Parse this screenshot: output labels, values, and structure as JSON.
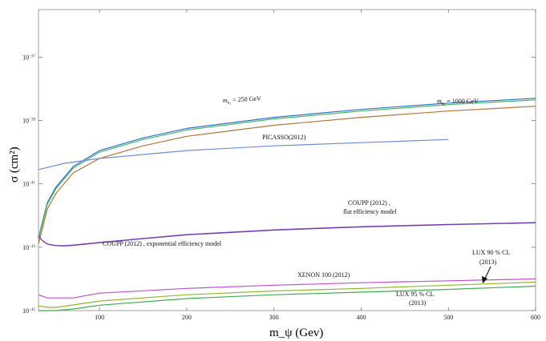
{
  "chart_data": {
    "type": "line",
    "title": "",
    "xlabel": "m_ψ (Gev)",
    "ylabel": "σ (cm²)",
    "xlim": [
      30,
      600
    ],
    "ylim_exponent": [
      -45,
      -35.5
    ],
    "yscale": "log",
    "grid": false,
    "x_ticks": [
      {
        "value": 100,
        "label": "100"
      },
      {
        "value": 200,
        "label": "200"
      },
      {
        "value": 300,
        "label": "300"
      },
      {
        "value": 400,
        "label": "400"
      },
      {
        "value": 500,
        "label": "500"
      },
      {
        "value": 600,
        "label": "600"
      }
    ],
    "y_ticks": [
      {
        "exp": -37,
        "base": "10",
        "power": "−37"
      },
      {
        "exp": -39,
        "base": "10",
        "power": "−39"
      },
      {
        "exp": -41,
        "base": "10",
        "power": "−41"
      },
      {
        "exp": -43,
        "base": "10",
        "power": "−43"
      },
      {
        "exp": -45,
        "base": "10",
        "power": "−45"
      }
    ],
    "series": [
      {
        "color": "#2b6fd6",
        "x": [
          30,
          40,
          50,
          70,
          100,
          150,
          200,
          300,
          400,
          500,
          600
        ],
        "log10_y": [
          -42.7,
          -41.6,
          -41.1,
          -40.45,
          -39.95,
          -39.55,
          -39.25,
          -38.9,
          -38.65,
          -38.45,
          -38.3
        ]
      },
      {
        "color": "#49b85c",
        "x": [
          30,
          40,
          50,
          70,
          100,
          150,
          200,
          300,
          400,
          500,
          600
        ],
        "log10_y": [
          -42.75,
          -41.65,
          -41.15,
          -40.5,
          -40.0,
          -39.6,
          -39.3,
          -38.95,
          -38.7,
          -38.5,
          -38.35
        ]
      },
      {
        "color": "#b5743a",
        "x": [
          30,
          40,
          50,
          70,
          100,
          150,
          200,
          300,
          400,
          500,
          600
        ],
        "log10_y": [
          -42.9,
          -41.8,
          -41.3,
          -40.65,
          -40.2,
          -39.8,
          -39.5,
          -39.15,
          -38.9,
          -38.7,
          -38.55
        ]
      },
      {
        "color": "#6d8fd6",
        "x": [
          30,
          60,
          100,
          200,
          300,
          400,
          500
        ],
        "log10_y": [
          -40.55,
          -40.35,
          -40.2,
          -39.95,
          -39.8,
          -39.7,
          -39.6
        ]
      },
      {
        "color": "#a040c8",
        "x": [
          30,
          35,
          40,
          50,
          60,
          70,
          100,
          150,
          200,
          300,
          400,
          500,
          600
        ],
        "log10_y": [
          -42.65,
          -42.8,
          -42.9,
          -42.95,
          -42.95,
          -42.93,
          -42.85,
          -42.72,
          -42.6,
          -42.45,
          -42.35,
          -42.28,
          -42.22
        ]
      },
      {
        "color": "#6a3fb0",
        "x": [
          30,
          35,
          40,
          50,
          60,
          70,
          100,
          150,
          200,
          300,
          400,
          500,
          600
        ],
        "log10_y": [
          -42.65,
          -42.8,
          -42.9,
          -42.95,
          -42.96,
          -42.94,
          -42.86,
          -42.73,
          -42.61,
          -42.46,
          -42.36,
          -42.29,
          -42.23
        ]
      },
      {
        "color": "#c050d0",
        "x": [
          30,
          40,
          50,
          70,
          100,
          200,
          300,
          400,
          500,
          600
        ],
        "log10_y": [
          -44.5,
          -44.6,
          -44.6,
          -44.6,
          -44.45,
          -44.3,
          -44.2,
          -44.12,
          -44.06,
          -44.0
        ]
      },
      {
        "color": "#8fb82a",
        "x": [
          30,
          40,
          50,
          70,
          100,
          200,
          300,
          400,
          500,
          600
        ],
        "log10_y": [
          -44.85,
          -44.9,
          -44.9,
          -44.82,
          -44.7,
          -44.5,
          -44.38,
          -44.3,
          -44.2,
          -44.1
        ]
      },
      {
        "color": "#3fae4e",
        "x": [
          30,
          40,
          50,
          70,
          100,
          200,
          300,
          400,
          500,
          600
        ],
        "log10_y": [
          -45.0,
          -45.0,
          -45.0,
          -44.95,
          -44.83,
          -44.62,
          -44.5,
          -44.42,
          -44.33,
          -44.23
        ]
      }
    ],
    "annotations": {
      "mh250_prefix": "m",
      "mh250_sub": "h",
      "mh250_sub2": "2",
      "mh250_text": " = 250 GeV",
      "mh1000_prefix": "m",
      "mh1000_sub": "h",
      "mh1000_sub2": "2",
      "mh1000_text": " = 1000 GeV",
      "picasso": "PICASSO(2012)",
      "coupp_flat_1": "COUPP (2012) ,",
      "coupp_flat_2": "flat efficiency model",
      "coupp_exp": "COUPP (2012) , exponential efficiency model",
      "xenon": "XENON 100 (2012)",
      "lux90_1": "LUX 90 % CL",
      "lux90_2": "(2013)",
      "lux95_1": "LUX 95 % CL",
      "lux95_2": "(2013)"
    }
  }
}
